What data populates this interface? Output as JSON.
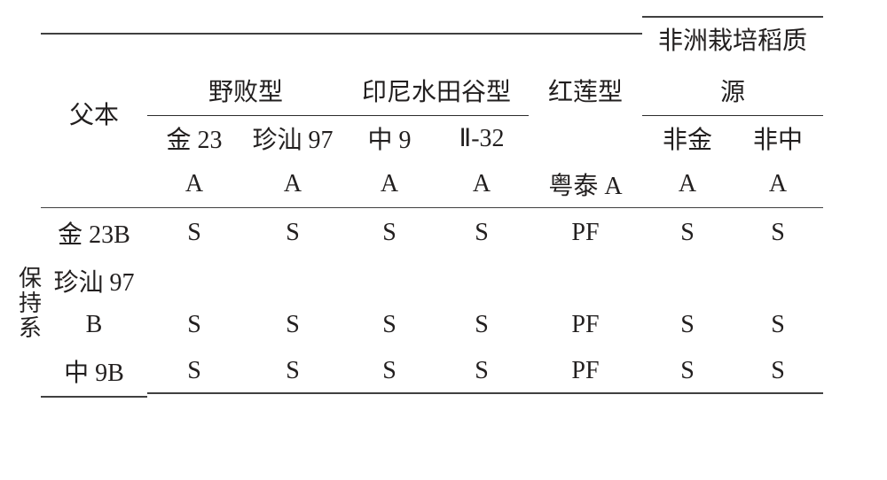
{
  "table": {
    "type": "table",
    "colors": {
      "rule": "#404040",
      "text": "#221f1f",
      "background": "#ffffff"
    },
    "font": {
      "family": "Songti/SimSun serif",
      "size_pt": 14
    },
    "header": {
      "row_stub": "父本",
      "col_stub": "保持系",
      "groups": {
        "wild": "野败型",
        "indo": "印尼水田谷型",
        "red": "红莲型",
        "africa_top": "非洲栽培稻质",
        "africa_bottom": "源"
      },
      "cms_lines": {
        "c1_top": "金 23",
        "c2_top": "珍汕 97",
        "c3_top": "中 9",
        "c4_top": "Ⅱ-32",
        "c5_single": "粤泰 A",
        "c6_top": "非金",
        "c7_top": "非中",
        "A": "A"
      }
    },
    "row_labels": {
      "r1": "金 23B",
      "r2_top": "珍汕 97",
      "r2_bottom": "B",
      "r3": "中 9B"
    },
    "cells": {
      "r1": [
        "S",
        "S",
        "S",
        "S",
        "PF",
        "S",
        "S"
      ],
      "r2": [
        "S",
        "S",
        "S",
        "S",
        "PF",
        "S",
        "S"
      ],
      "r3": [
        "S",
        "S",
        "S",
        "S",
        "PF",
        "S",
        "S"
      ]
    }
  }
}
